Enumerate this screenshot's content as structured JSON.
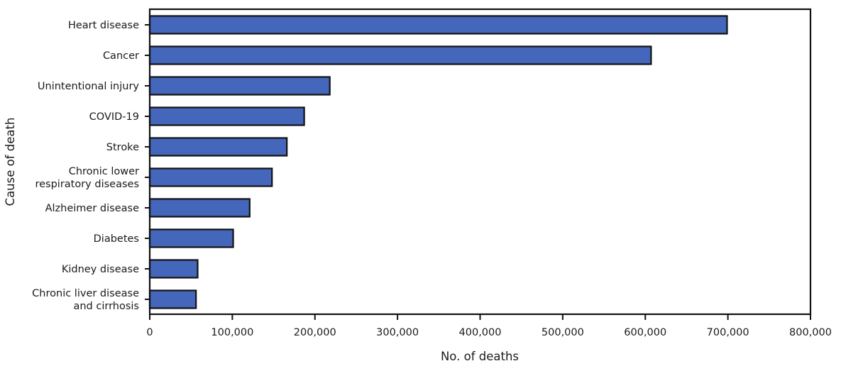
{
  "chart_data": {
    "type": "bar",
    "orientation": "horizontal",
    "title": "",
    "xlabel": "No. of deaths",
    "ylabel": "Cause of death",
    "xlim": [
      0,
      800000
    ],
    "xticks": [
      0,
      100000,
      200000,
      300000,
      400000,
      500000,
      600000,
      700000,
      800000
    ],
    "xtick_labels": [
      "0",
      "100,000",
      "200,000",
      "300,000",
      "400,000",
      "500,000",
      "600,000",
      "700,000",
      "800,000"
    ],
    "grid": false,
    "legend": null,
    "bar_color": "#4466bb",
    "bar_edge_color": "#111111",
    "categories": [
      [
        "Heart disease"
      ],
      [
        "Cancer"
      ],
      [
        "Unintentional injury"
      ],
      [
        "COVID-19"
      ],
      [
        "Stroke"
      ],
      [
        "Chronic lower",
        "respiratory diseases"
      ],
      [
        "Alzheimer disease"
      ],
      [
        "Diabetes"
      ],
      [
        "Kidney disease"
      ],
      [
        "Chronic liver disease",
        "and cirrhosis"
      ]
    ],
    "values": [
      699000,
      607000,
      218000,
      187000,
      166000,
      148000,
      121000,
      101000,
      58000,
      56000
    ]
  }
}
